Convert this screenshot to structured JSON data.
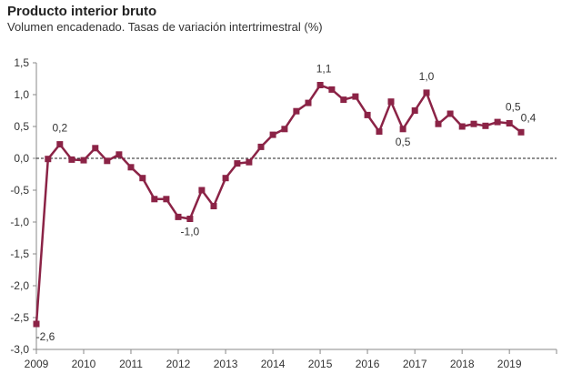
{
  "header": {
    "title": "Producto interior bruto",
    "subtitle": "Volumen encadenado. Tasas de variación intertrimestral (%)"
  },
  "colors": {
    "series": "#8b2346",
    "axis": "#888888",
    "zero_line": "#222222"
  },
  "chart_data": {
    "type": "line",
    "title": "Producto interior bruto",
    "subtitle": "Volumen encadenado. Tasas de variación intertrimestral (%)",
    "xlabel": "",
    "ylabel": "",
    "ylim": [
      -3.0,
      1.5
    ],
    "yticks": [
      1.5,
      1.0,
      0.5,
      0.0,
      -0.5,
      -1.0,
      -1.5,
      -2.0,
      -2.5,
      -3.0
    ],
    "ytick_labels": [
      "1,5",
      "1,0",
      "0,5",
      "0,0",
      "-0,5",
      "-1,0",
      "-1,5",
      "-2,0",
      "-2,5",
      "-3,0"
    ],
    "xlim": [
      "2009-01-01",
      "2019-12-31"
    ],
    "xticks": [
      "2009",
      "2010",
      "2011",
      "2012",
      "2013",
      "2014",
      "2015",
      "2016",
      "2017",
      "2018",
      "2019"
    ],
    "grid": false,
    "zero_line": "dashed",
    "series": [
      {
        "marker": "square",
        "x": [
          "2009-01-01",
          "2009-04-01",
          "2009-07-01",
          "2009-10-01",
          "2010-01-01",
          "2010-04-01",
          "2010-07-01",
          "2010-10-01",
          "2011-01-01",
          "2011-04-01",
          "2011-07-01",
          "2011-10-01",
          "2012-01-01",
          "2012-04-01",
          "2012-07-01",
          "2012-10-01",
          "2013-01-01",
          "2013-04-01",
          "2013-07-01",
          "2013-10-01",
          "2014-01-01",
          "2014-04-01",
          "2014-07-01",
          "2014-10-01",
          "2015-01-01",
          "2015-04-01",
          "2015-07-01",
          "2015-10-01",
          "2016-01-01",
          "2016-04-01",
          "2016-07-01",
          "2016-10-01",
          "2017-01-01",
          "2017-04-01",
          "2017-07-01",
          "2017-10-01",
          "2018-01-01",
          "2018-04-01",
          "2018-07-01",
          "2018-10-01",
          "2019-01-01",
          "2019-04-01"
        ],
        "values": [
          -2.6,
          -0.01,
          0.22,
          -0.02,
          -0.03,
          0.16,
          -0.04,
          0.06,
          -0.14,
          -0.31,
          -0.64,
          -0.64,
          -0.92,
          -0.95,
          -0.5,
          -0.75,
          -0.31,
          -0.08,
          -0.06,
          0.18,
          0.37,
          0.46,
          0.74,
          0.87,
          1.15,
          1.08,
          0.92,
          0.97,
          0.68,
          0.42,
          0.89,
          0.46,
          0.75,
          1.03,
          0.54,
          0.7,
          0.5,
          0.54,
          0.51,
          0.57,
          0.55,
          0.41
        ]
      }
    ],
    "annotations": [
      {
        "index": 0,
        "text": "-2,6"
      },
      {
        "index": 2,
        "text": "0,2"
      },
      {
        "index": 13,
        "text": "-1,0"
      },
      {
        "index": 24,
        "text": "1,1"
      },
      {
        "index": 31,
        "text": "0,5"
      },
      {
        "index": 33,
        "text": "1,0"
      },
      {
        "index": 40,
        "text": "0,5"
      },
      {
        "index": 41,
        "text": "0,4"
      }
    ]
  }
}
